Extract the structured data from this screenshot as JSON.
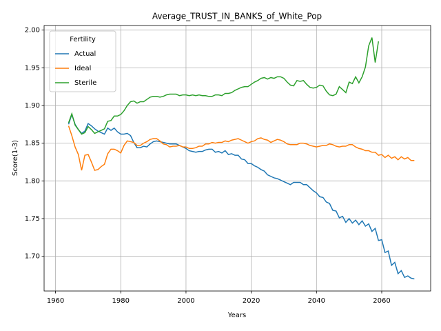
{
  "chart_data": {
    "type": "line",
    "title": "Average_TRUST_IN_BANKS_of_White_Pop",
    "xlabel": "Years",
    "ylabel": "Score(1-3)",
    "legend_title": "Fertility",
    "legend": "upper left",
    "grid": true,
    "x": [
      1964,
      1965,
      1966,
      1967,
      1968,
      1969,
      1970,
      1971,
      1972,
      1973,
      1974,
      1975,
      1976,
      1977,
      1978,
      1979,
      1980,
      1981,
      1982,
      1983,
      1984,
      1985,
      1986,
      1987,
      1988,
      1989,
      1990,
      1991,
      1992,
      1993,
      1994,
      1995,
      1996,
      1997,
      1998,
      1999,
      2000,
      2001,
      2002,
      2003,
      2004,
      2005,
      2006,
      2007,
      2008,
      2009,
      2010,
      2011,
      2012,
      2013,
      2014,
      2015,
      2016,
      2017,
      2018,
      2019,
      2020,
      2021,
      2022,
      2023,
      2024,
      2025,
      2026,
      2027,
      2028,
      2029,
      2030,
      2031,
      2032,
      2033,
      2034,
      2035,
      2036,
      2037,
      2038,
      2039,
      2040,
      2041,
      2042,
      2043,
      2044,
      2045,
      2046,
      2047,
      2048,
      2049,
      2050,
      2051,
      2052,
      2053,
      2054,
      2055,
      2056,
      2057,
      2058,
      2059,
      2060,
      2061,
      2062,
      2063,
      2064,
      2065,
      2066,
      2067,
      2068,
      2069,
      2070
    ],
    "series": [
      {
        "name": "Actual",
        "color": "#1f77b4",
        "values": [
          1.875,
          1.888,
          1.875,
          1.868,
          1.863,
          1.866,
          1.876,
          1.873,
          1.869,
          1.866,
          1.864,
          1.862,
          1.87,
          1.867,
          1.87,
          1.865,
          1.862,
          1.862,
          1.863,
          1.86,
          1.851,
          1.844,
          1.844,
          1.846,
          1.845,
          1.849,
          1.852,
          1.853,
          1.852,
          1.851,
          1.85,
          1.849,
          1.849,
          1.849,
          1.847,
          1.845,
          1.843,
          1.84,
          1.839,
          1.838,
          1.839,
          1.839,
          1.841,
          1.842,
          1.842,
          1.838,
          1.839,
          1.837,
          1.84,
          1.835,
          1.836,
          1.834,
          1.834,
          1.829,
          1.828,
          1.823,
          1.823,
          1.82,
          1.818,
          1.815,
          1.813,
          1.808,
          1.806,
          1.804,
          1.803,
          1.801,
          1.799,
          1.797,
          1.795,
          1.798,
          1.798,
          1.798,
          1.795,
          1.795,
          1.791,
          1.787,
          1.784,
          1.779,
          1.778,
          1.772,
          1.77,
          1.761,
          1.76,
          1.751,
          1.753,
          1.745,
          1.75,
          1.744,
          1.748,
          1.742,
          1.747,
          1.74,
          1.743,
          1.733,
          1.737,
          1.721,
          1.722,
          1.705,
          1.707,
          1.688,
          1.692,
          1.677,
          1.681,
          1.672,
          1.674,
          1.671,
          1.67
        ]
      },
      {
        "name": "Ideal",
        "color": "#ff7f0e",
        "values": [
          1.873,
          1.86,
          1.845,
          1.835,
          1.814,
          1.834,
          1.835,
          1.825,
          1.814,
          1.815,
          1.819,
          1.822,
          1.836,
          1.842,
          1.842,
          1.84,
          1.837,
          1.847,
          1.853,
          1.852,
          1.851,
          1.847,
          1.847,
          1.85,
          1.852,
          1.855,
          1.856,
          1.856,
          1.853,
          1.849,
          1.848,
          1.845,
          1.846,
          1.846,
          1.847,
          1.845,
          1.845,
          1.843,
          1.843,
          1.844,
          1.846,
          1.846,
          1.849,
          1.849,
          1.851,
          1.85,
          1.851,
          1.851,
          1.853,
          1.852,
          1.854,
          1.855,
          1.856,
          1.854,
          1.852,
          1.85,
          1.852,
          1.853,
          1.856,
          1.857,
          1.855,
          1.854,
          1.851,
          1.853,
          1.855,
          1.854,
          1.852,
          1.849,
          1.848,
          1.848,
          1.848,
          1.85,
          1.85,
          1.849,
          1.847,
          1.846,
          1.845,
          1.846,
          1.847,
          1.847,
          1.849,
          1.848,
          1.846,
          1.845,
          1.846,
          1.846,
          1.848,
          1.848,
          1.845,
          1.843,
          1.842,
          1.84,
          1.84,
          1.838,
          1.838,
          1.834,
          1.835,
          1.831,
          1.834,
          1.83,
          1.832,
          1.828,
          1.832,
          1.829,
          1.831,
          1.827,
          1.827
        ]
      },
      {
        "name": "Sterile",
        "color": "#2ca02c",
        "values": [
          1.877,
          1.889,
          1.874,
          1.868,
          1.862,
          1.864,
          1.872,
          1.868,
          1.863,
          1.865,
          1.867,
          1.869,
          1.879,
          1.88,
          1.886,
          1.886,
          1.888,
          1.893,
          1.9,
          1.905,
          1.906,
          1.903,
          1.905,
          1.905,
          1.908,
          1.911,
          1.912,
          1.912,
          1.911,
          1.912,
          1.914,
          1.915,
          1.915,
          1.915,
          1.913,
          1.914,
          1.914,
          1.913,
          1.914,
          1.913,
          1.914,
          1.913,
          1.913,
          1.912,
          1.912,
          1.914,
          1.914,
          1.913,
          1.916,
          1.916,
          1.917,
          1.92,
          1.922,
          1.924,
          1.925,
          1.925,
          1.928,
          1.931,
          1.933,
          1.936,
          1.937,
          1.935,
          1.937,
          1.936,
          1.938,
          1.938,
          1.936,
          1.931,
          1.927,
          1.926,
          1.933,
          1.932,
          1.933,
          1.928,
          1.924,
          1.923,
          1.924,
          1.927,
          1.926,
          1.919,
          1.914,
          1.913,
          1.915,
          1.925,
          1.921,
          1.917,
          1.931,
          1.929,
          1.938,
          1.93,
          1.938,
          1.951,
          1.979,
          1.99,
          1.957,
          1.985,
          null,
          null,
          null,
          null,
          null,
          null,
          null,
          null,
          null,
          null,
          null
        ]
      }
    ],
    "xlim": [
      1956.5,
      2075
    ],
    "xticks": [
      1960,
      1980,
      2000,
      2020,
      2040,
      2060
    ],
    "ylim": [
      1.654,
      2.006
    ],
    "yticks": [
      {
        "value": 1.7,
        "label": "1.70"
      },
      1.75,
      {
        "value": 1.8,
        "label": "1.80"
      },
      1.85,
      {
        "value": 1.9,
        "label": "1.90"
      },
      1.95,
      {
        "value": 2.0,
        "label": "2.00"
      }
    ]
  }
}
